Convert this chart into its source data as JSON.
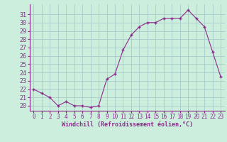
{
  "x": [
    0,
    1,
    2,
    3,
    4,
    5,
    6,
    7,
    8,
    9,
    10,
    11,
    12,
    13,
    14,
    15,
    16,
    17,
    18,
    19,
    20,
    21,
    22,
    23
  ],
  "y": [
    22.0,
    21.5,
    21.0,
    20.0,
    20.5,
    20.0,
    20.0,
    19.8,
    20.0,
    23.2,
    23.8,
    26.7,
    28.5,
    29.5,
    30.0,
    30.0,
    30.5,
    30.5,
    30.5,
    31.5,
    30.5,
    29.5,
    26.5,
    23.5
  ],
  "line_color": "#8b2a8b",
  "marker_color": "#8b2a8b",
  "bg_color": "#cceedd",
  "grid_color": "#aacccc",
  "xlabel": "Windchill (Refroidissement éolien,°C)",
  "xlabel_color": "#8b2a8b",
  "ylabel_ticks": [
    20,
    21,
    22,
    23,
    24,
    25,
    26,
    27,
    28,
    29,
    30,
    31
  ],
  "ylim": [
    19.4,
    32.2
  ],
  "xlim": [
    -0.5,
    23.5
  ],
  "tick_color": "#8b2a8b",
  "tick_label_color": "#8b2a8b",
  "xlabel_fontsize": 6.0,
  "ytick_fontsize": 6.0,
  "xtick_fontsize": 5.5
}
